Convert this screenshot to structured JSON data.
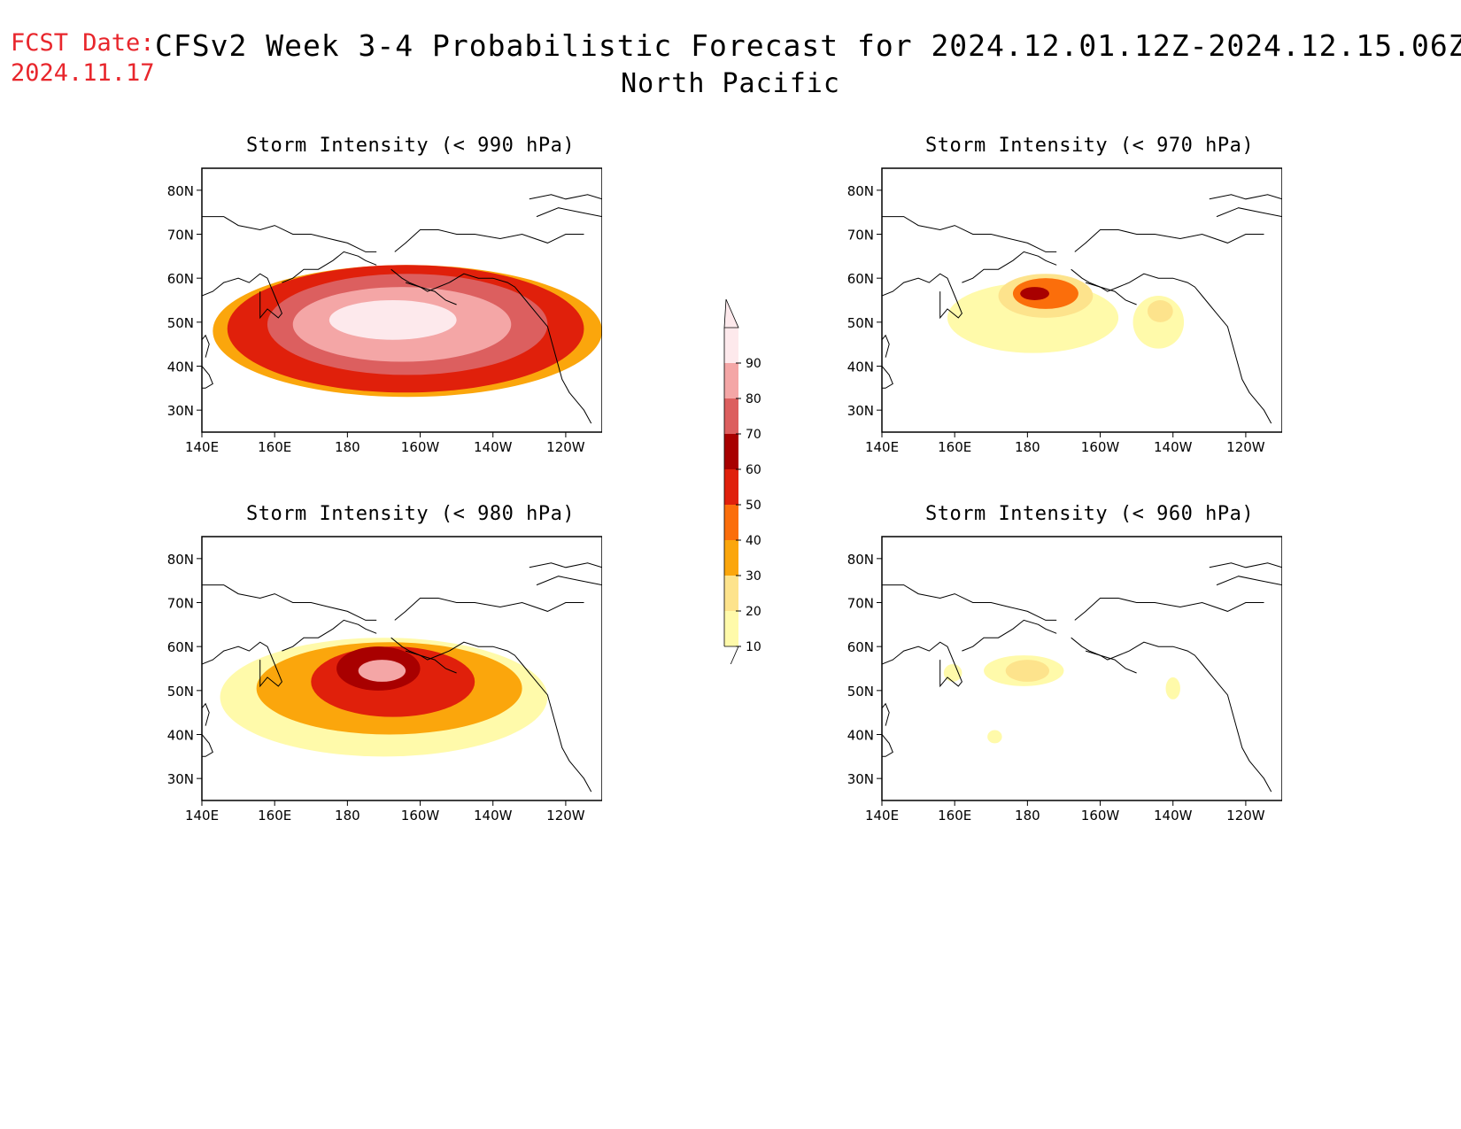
{
  "header": {
    "fcst_label": "FCST Date:",
    "fcst_date": "2024.11.17",
    "title": "CFSv2 Week 3-4 Probabilistic Forecast for 2024.12.01.12Z-2024.12.15.06Z",
    "region": "North Pacific"
  },
  "axes": {
    "lat_labels": [
      "80N",
      "70N",
      "60N",
      "50N",
      "40N",
      "30N"
    ],
    "lon_labels": [
      "140E",
      "160E",
      "180",
      "160W",
      "140W",
      "120W"
    ]
  },
  "panels": [
    {
      "title": "Storm Intensity (< 990 hPa)"
    },
    {
      "title": "Storm Intensity (< 970 hPa)"
    },
    {
      "title": "Storm Intensity (< 980 hPa)"
    },
    {
      "title": "Storm Intensity (< 960 hPa)"
    }
  ],
  "colorbar": {
    "levels": [
      "10",
      "20",
      "30",
      "40",
      "50",
      "60",
      "70",
      "80",
      "90"
    ],
    "colors": [
      "#fffaaa",
      "#fde38c",
      "#fba60c",
      "#fb6e0b",
      "#e0200b",
      "#a80000",
      "#dc5f5f",
      "#f4a6a6",
      "#fde9ec"
    ]
  },
  "chart_data": [
    {
      "type": "heatmap",
      "title": "Storm Intensity (< 990 hPa)",
      "xlim": [
        "140E",
        "110W"
      ],
      "ylim": [
        25,
        85
      ],
      "regions": [
        {
          "level": 30,
          "lon": [
            143,
            250
          ],
          "lat": [
            33,
            63
          ]
        },
        {
          "level": 50,
          "lon": [
            147,
            245
          ],
          "lat": [
            34,
            63
          ]
        },
        {
          "level": 70,
          "lon": [
            158,
            235
          ],
          "lat": [
            38,
            61
          ]
        },
        {
          "level": 80,
          "lon": [
            165,
            225
          ],
          "lat": [
            41,
            58
          ]
        },
        {
          "level": 90,
          "lon": [
            175,
            210
          ],
          "lat": [
            46,
            55
          ]
        }
      ]
    },
    {
      "type": "heatmap",
      "title": "Storm Intensity (< 970 hPa)",
      "xlim": [
        "140E",
        "110W"
      ],
      "ylim": [
        25,
        85
      ],
      "regions": [
        {
          "level": 10,
          "lon": [
            158,
            205
          ],
          "lat": [
            43,
            59
          ]
        },
        {
          "level": 20,
          "lon": [
            172,
            198
          ],
          "lat": [
            51,
            61
          ]
        },
        {
          "level": 40,
          "lon": [
            176,
            194
          ],
          "lat": [
            53,
            60
          ]
        },
        {
          "level": 60,
          "lon": [
            178,
            186
          ],
          "lat": [
            55,
            58
          ]
        },
        {
          "level": 10,
          "lon": [
            209,
            223
          ],
          "lat": [
            44,
            56
          ]
        },
        {
          "level": 20,
          "lon": [
            213,
            220
          ],
          "lat": [
            50,
            55
          ]
        }
      ]
    },
    {
      "type": "heatmap",
      "title": "Storm Intensity (< 980 hPa)",
      "xlim": [
        "140E",
        "110W"
      ],
      "ylim": [
        25,
        85
      ],
      "regions": [
        {
          "level": 10,
          "lon": [
            145,
            235
          ],
          "lat": [
            35,
            62
          ]
        },
        {
          "level": 30,
          "lon": [
            155,
            228
          ],
          "lat": [
            40,
            61
          ]
        },
        {
          "level": 50,
          "lon": [
            170,
            215
          ],
          "lat": [
            44,
            60
          ]
        },
        {
          "level": 60,
          "lon": [
            177,
            200
          ],
          "lat": [
            50,
            60
          ]
        },
        {
          "level": 80,
          "lon": [
            183,
            196
          ],
          "lat": [
            52,
            57
          ]
        }
      ]
    },
    {
      "type": "heatmap",
      "title": "Storm Intensity (< 960 hPa)",
      "xlim": [
        "140E",
        "110W"
      ],
      "ylim": [
        25,
        85
      ],
      "regions": [
        {
          "level": 10,
          "lon": [
            168,
            190
          ],
          "lat": [
            51,
            58
          ]
        },
        {
          "level": 20,
          "lon": [
            174,
            186
          ],
          "lat": [
            52,
            57
          ]
        },
        {
          "level": 10,
          "lon": [
            157,
            162
          ],
          "lat": [
            52,
            56
          ]
        },
        {
          "level": 10,
          "lon": [
            218,
            222
          ],
          "lat": [
            48,
            53
          ]
        },
        {
          "level": 10,
          "lon": [
            169,
            173
          ],
          "lat": [
            38,
            41
          ]
        }
      ]
    }
  ]
}
